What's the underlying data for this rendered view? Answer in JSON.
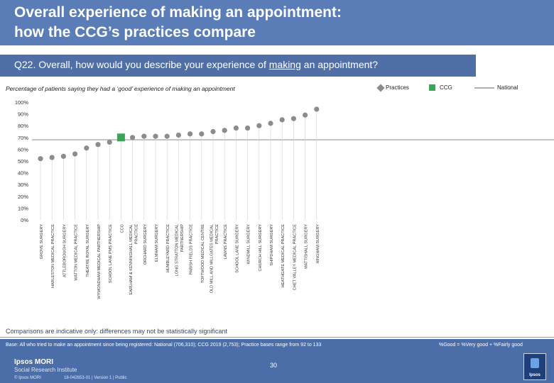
{
  "header": {
    "title_line1": "Overall experience of making an appointment:",
    "title_line2": "how the CCG’s practices compare"
  },
  "question": {
    "prefix": "Q22. Overall, how would you describe your experience of ",
    "underlined": "making",
    "suffix": " an appointment?"
  },
  "subtitle": "Percentage of patients saying they had a ‘good’ experience of making an appointment",
  "legend": {
    "practices": "Practices",
    "ccg": "CCG",
    "national": "National"
  },
  "colors": {
    "practice": "#8c8c8c",
    "ccg": "#3aa655",
    "national": "#b0b0b0",
    "title_bar": "#5a7db8",
    "question_bar": "#4f6fa6",
    "footer": "#4b6ea8"
  },
  "chart_data": {
    "type": "scatter",
    "categories": [
      "GROVE SURGERY",
      "HARLESTON MEDICAL PRACTICE",
      "ATTLEBOROUGH SURGERY",
      "WATTON MEDICAL PRACTICE",
      "THEATRE ROYAL SURGERY",
      "WYMONDHAM MEDICAL PARTNERSHIP",
      "SCHOOL LANE PMS PRACTICE",
      "CCG",
      "EARLHAM & KENNINGHALL MEDICAL PRACTICE",
      "ORCHARD SURGERY",
      "ELMHAM SURGERY",
      "HUMBLEYARD PRACTICE",
      "LONG STRATTON MEDICAL PARTNERSHIP",
      "PARISH FIELDS PRACTICE",
      "TOFTWOOD MEDICAL CENTRE",
      "OLD MILL AND MILLGATES MEDICAL PRACTICE",
      "LAWNS PRACTICE",
      "SCHOOL LANE SURGERY",
      "WINDMILL SURGERY",
      "CHURCH HILL SURGERY",
      "SHIPDHAM SURGERY",
      "HEATHGATE MEDICAL PRACTICE",
      "CHET VALLEY MEDICAL PRACTICE",
      "MATTISHALL SURGERY",
      "HINGHAM SURGERY"
    ],
    "values": [
      52,
      53,
      54,
      56,
      61,
      64,
      66,
      70,
      70,
      71,
      71,
      71,
      72,
      73,
      73,
      75,
      76,
      78,
      78,
      80,
      82,
      85,
      86,
      89,
      94
    ],
    "ccg_index": 7,
    "national": 68,
    "y_ticks": [
      "0%",
      "10%",
      "20%",
      "30%",
      "40%",
      "50%",
      "60%",
      "70%",
      "80%",
      "90%",
      "100%"
    ],
    "ylim": [
      0,
      100
    ],
    "grid": false,
    "legend_position": "top-right"
  },
  "footer": {
    "note": "Comparisons are indicative only: differences may not be statistically significant",
    "base": "Base: All who tried to make an appointment since being registered: National (706,310); CCG 2019 (2,753); Practice bases range from 92 to 133",
    "definition": "%Good = %Very good + %Fairly good",
    "brand_line1": "Ipsos MORI",
    "brand_line2": "Social Research Institute",
    "copyright": "© Ipsos MORI",
    "reference": "18-042653-01 | Version 1 | Public",
    "page_number": "30",
    "logo_label": "Ipsos"
  }
}
